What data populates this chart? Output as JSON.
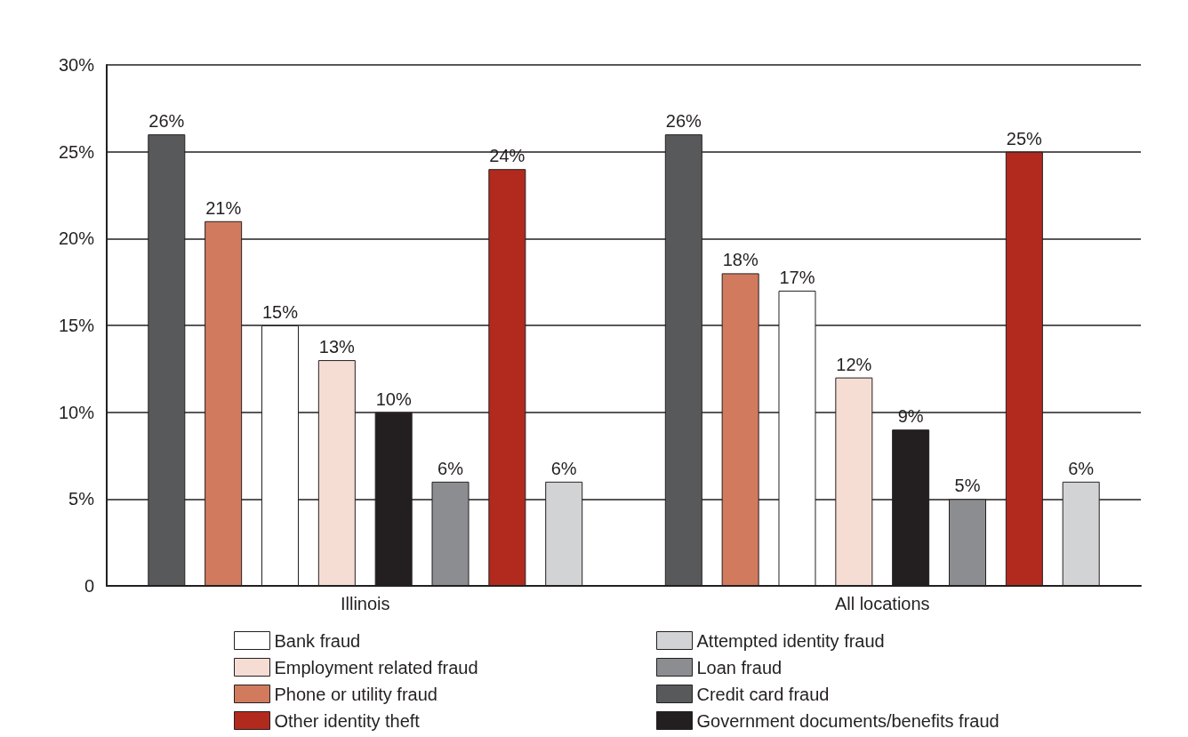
{
  "chart_data": {
    "type": "bar",
    "categories": [
      "Illinois",
      "All locations"
    ],
    "series": [
      {
        "name": "Credit card fraud",
        "color": "#58595b",
        "values": [
          26,
          26
        ],
        "value_labels": [
          "26%",
          "26%"
        ]
      },
      {
        "name": "Phone or utility fraud",
        "color": "#d27a5e",
        "values": [
          21,
          18
        ],
        "value_labels": [
          "21%",
          "18%"
        ]
      },
      {
        "name": "Bank fraud",
        "color": "#ffffff",
        "values": [
          15,
          17
        ],
        "value_labels": [
          "15%",
          "17%"
        ]
      },
      {
        "name": "Employment related fraud",
        "color": "#f5ddd4",
        "values": [
          13,
          12
        ],
        "value_labels": [
          "13%",
          "12%"
        ]
      },
      {
        "name": "Government documents/benefits fraud",
        "color": "#231f20",
        "values": [
          10,
          9
        ],
        "value_labels": [
          "10%",
          "9%"
        ]
      },
      {
        "name": "Loan fraud",
        "color": "#8c8d90",
        "values": [
          6,
          5
        ],
        "value_labels": [
          "6%",
          "5%"
        ]
      },
      {
        "name": "Other identity theft",
        "color": "#b22a1e",
        "values": [
          24,
          25
        ],
        "value_labels": [
          "24%",
          "25%"
        ]
      },
      {
        "name": "Attempted identity fraud",
        "color": "#d2d3d5",
        "values": [
          6,
          6
        ],
        "value_labels": [
          "6%",
          "6%"
        ]
      }
    ],
    "ylim": [
      0,
      30
    ],
    "yticks": [
      0,
      {
        "value": 5,
        "label": "5%"
      },
      {
        "value": 10,
        "label": "10%"
      },
      {
        "value": 15,
        "label": "15%"
      },
      {
        "value": 20,
        "label": "20%"
      },
      {
        "value": 25,
        "label": "25%"
      },
      {
        "value": 30,
        "label": "30%"
      }
    ],
    "grid": "y",
    "legend": "bottom"
  }
}
